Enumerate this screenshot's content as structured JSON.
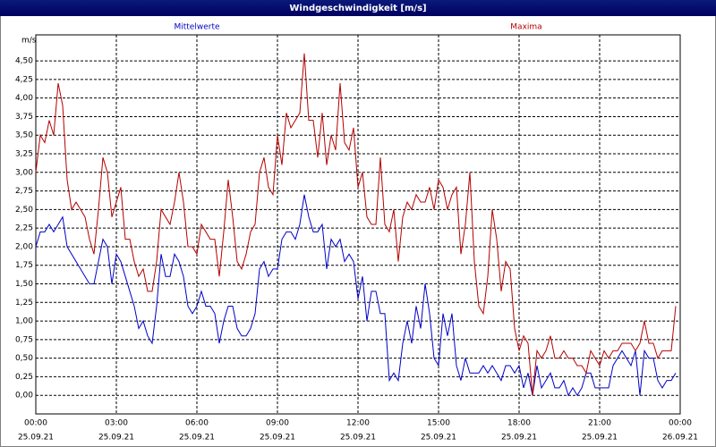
{
  "chart_data": {
    "type": "line",
    "title": "Windgeschwindigkeit [m/s]",
    "ylabel": "m/s",
    "xlim": [
      0,
      1440
    ],
    "ylim": [
      -0.25,
      4.85
    ],
    "grid": true,
    "xticks": [
      {
        "value": 0,
        "label": "00:00",
        "date": "25.09.21"
      },
      {
        "value": 180,
        "label": "03:00",
        "date": "25.09.21"
      },
      {
        "value": 360,
        "label": "06:00",
        "date": "25.09.21"
      },
      {
        "value": 540,
        "label": "09:00",
        "date": "25.09.21"
      },
      {
        "value": 720,
        "label": "12:00",
        "date": "25.09.21"
      },
      {
        "value": 900,
        "label": "15:00",
        "date": "25.09.21"
      },
      {
        "value": 1080,
        "label": "18:00",
        "date": "25.09.21"
      },
      {
        "value": 1260,
        "label": "21:00",
        "date": "25.09.21"
      },
      {
        "value": 1440,
        "label": "00:00",
        "date": "26.09.21"
      }
    ],
    "yticks": [
      {
        "value": 0,
        "label": "0,00"
      },
      {
        "value": 0.25,
        "label": "0,25"
      },
      {
        "value": 0.5,
        "label": "0,50"
      },
      {
        "value": 0.75,
        "label": "0,75"
      },
      {
        "value": 1,
        "label": "1,00"
      },
      {
        "value": 1.25,
        "label": "1,25"
      },
      {
        "value": 1.5,
        "label": "1,50"
      },
      {
        "value": 1.75,
        "label": "1,75"
      },
      {
        "value": 2,
        "label": "2,00"
      },
      {
        "value": 2.25,
        "label": "2,25"
      },
      {
        "value": 2.5,
        "label": "2,50"
      },
      {
        "value": 2.75,
        "label": "2,75"
      },
      {
        "value": 3,
        "label": "3,00"
      },
      {
        "value": 3.25,
        "label": "3,25"
      },
      {
        "value": 3.5,
        "label": "3,50"
      },
      {
        "value": 3.75,
        "label": "3,75"
      },
      {
        "value": 4,
        "label": "4,00"
      },
      {
        "value": 4.25,
        "label": "4,25"
      },
      {
        "value": 4.5,
        "label": "4,50"
      }
    ],
    "x": [
      0,
      10,
      20,
      30,
      40,
      50,
      60,
      70,
      80,
      90,
      100,
      110,
      120,
      130,
      140,
      150,
      160,
      170,
      180,
      190,
      200,
      210,
      220,
      230,
      240,
      250,
      260,
      270,
      280,
      290,
      300,
      310,
      320,
      330,
      340,
      350,
      360,
      370,
      380,
      390,
      400,
      410,
      420,
      430,
      440,
      450,
      460,
      470,
      480,
      490,
      500,
      510,
      520,
      530,
      540,
      550,
      560,
      570,
      580,
      590,
      600,
      610,
      620,
      630,
      640,
      650,
      660,
      670,
      680,
      690,
      700,
      710,
      720,
      730,
      740,
      750,
      760,
      770,
      780,
      790,
      800,
      810,
      820,
      830,
      840,
      850,
      860,
      870,
      880,
      890,
      900,
      910,
      920,
      930,
      940,
      950,
      960,
      970,
      980,
      990,
      1000,
      1010,
      1020,
      1030,
      1040,
      1050,
      1060,
      1070,
      1080,
      1090,
      1100,
      1110,
      1120,
      1130,
      1140,
      1150,
      1160,
      1170,
      1180,
      1190,
      1200,
      1210,
      1220,
      1230,
      1240,
      1250,
      1260,
      1270,
      1280,
      1290,
      1300,
      1310,
      1320,
      1330,
      1340,
      1350,
      1360,
      1370,
      1380,
      1390,
      1400,
      1410,
      1420,
      1430
    ],
    "series": [
      {
        "name": "Mittelwerte",
        "color": "#0000c8",
        "values": [
          2.0,
          2.2,
          2.2,
          2.3,
          2.2,
          2.3,
          2.4,
          2.0,
          1.9,
          1.8,
          1.7,
          1.6,
          1.5,
          1.5,
          1.8,
          2.1,
          2.0,
          1.5,
          1.9,
          1.8,
          1.6,
          1.4,
          1.2,
          0.9,
          1.0,
          0.8,
          0.7,
          1.2,
          1.9,
          1.6,
          1.6,
          1.9,
          1.8,
          1.6,
          1.2,
          1.1,
          1.2,
          1.4,
          1.2,
          1.2,
          1.1,
          0.7,
          1.0,
          1.2,
          1.2,
          0.9,
          0.8,
          0.8,
          0.9,
          1.1,
          1.7,
          1.8,
          1.6,
          1.7,
          1.7,
          2.1,
          2.2,
          2.2,
          2.1,
          2.3,
          2.7,
          2.4,
          2.2,
          2.2,
          2.3,
          1.7,
          2.1,
          2.0,
          2.1,
          1.8,
          1.9,
          1.8,
          1.3,
          1.6,
          1.0,
          1.4,
          1.4,
          1.1,
          1.1,
          0.2,
          0.3,
          0.2,
          0.7,
          1.0,
          0.7,
          1.2,
          0.9,
          1.5,
          1.1,
          0.5,
          0.4,
          1.1,
          0.8,
          1.1,
          0.4,
          0.2,
          0.5,
          0.3,
          0.3,
          0.3,
          0.4,
          0.3,
          0.4,
          0.3,
          0.2,
          0.4,
          0.4,
          0.3,
          0.4,
          0.1,
          0.3,
          0.0,
          0.4,
          0.1,
          0.2,
          0.3,
          0.1,
          0.1,
          0.2,
          0.0,
          0.1,
          0.0,
          0.1,
          0.3,
          0.3,
          0.1,
          0.1,
          0.1,
          0.1,
          0.4,
          0.5,
          0.6,
          0.5,
          0.4,
          0.6,
          0.0,
          0.6,
          0.5,
          0.5,
          0.2,
          0.1,
          0.2,
          0.2,
          0.3
        ]
      },
      {
        "name": "Maxima",
        "color": "#b40000",
        "values": [
          3.0,
          3.5,
          3.4,
          3.7,
          3.5,
          4.2,
          3.9,
          2.9,
          2.5,
          2.6,
          2.5,
          2.4,
          2.1,
          1.9,
          2.5,
          3.2,
          3.0,
          2.4,
          2.6,
          2.8,
          2.1,
          2.1,
          1.8,
          1.6,
          1.7,
          1.4,
          1.4,
          1.8,
          2.5,
          2.4,
          2.3,
          2.6,
          3.0,
          2.6,
          2.0,
          2.0,
          1.9,
          2.3,
          2.2,
          2.1,
          2.1,
          1.6,
          2.2,
          2.9,
          2.4,
          1.8,
          1.7,
          1.9,
          2.2,
          2.3,
          3.0,
          3.2,
          2.8,
          2.7,
          3.5,
          3.1,
          3.8,
          3.6,
          3.7,
          3.8,
          4.6,
          3.7,
          3.7,
          3.2,
          3.8,
          3.1,
          3.5,
          3.3,
          4.2,
          3.4,
          3.3,
          3.6,
          2.8,
          3.0,
          2.4,
          2.3,
          2.3,
          3.2,
          2.3,
          2.2,
          2.5,
          1.8,
          2.4,
          2.6,
          2.5,
          2.7,
          2.6,
          2.6,
          2.8,
          2.5,
          2.9,
          2.8,
          2.5,
          2.7,
          2.8,
          1.9,
          2.3,
          3.0,
          1.8,
          1.2,
          1.1,
          1.6,
          2.5,
          2.1,
          1.4,
          1.8,
          1.7,
          0.9,
          0.6,
          0.8,
          0.7,
          0.0,
          0.6,
          0.5,
          0.6,
          0.8,
          0.5,
          0.5,
          0.6,
          0.5,
          0.5,
          0.4,
          0.4,
          0.3,
          0.6,
          0.5,
          0.4,
          0.6,
          0.5,
          0.6,
          0.6,
          0.7,
          0.7,
          0.7,
          0.6,
          0.7,
          1.0,
          0.7,
          0.7,
          0.5,
          0.6,
          0.6,
          0.6,
          1.2
        ]
      }
    ]
  }
}
